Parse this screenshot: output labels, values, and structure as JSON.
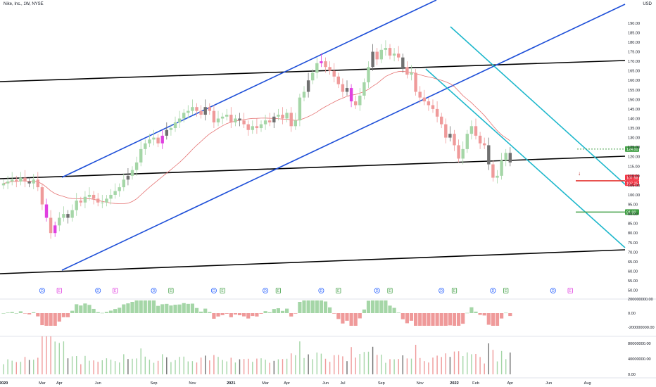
{
  "header": {
    "title": "Nike, Inc., 1W, NYSE",
    "currency": "USD"
  },
  "chart_data": {
    "type": "candlestick",
    "symbol": "NKE",
    "interval": "1W",
    "exchange": "NYSE",
    "ylim": [
      48,
      194
    ],
    "price_ticks": [
      50,
      55,
      60,
      65,
      70,
      75,
      80,
      85,
      90,
      95,
      100,
      105,
      110,
      115,
      120,
      125,
      130,
      135,
      140,
      145,
      150,
      155,
      160,
      165,
      170,
      175,
      180,
      185,
      190
    ],
    "price_tick_labels": [
      "50.00",
      "55.00",
      "60.00",
      "65.00",
      "70.00",
      "75.00",
      "80.00",
      "85.00",
      "90.00",
      "95.00",
      "100.00",
      "105.00",
      "110.00",
      "115.00",
      "120.00",
      "125.00",
      "130.00",
      "135.00",
      "140.00",
      "145.00",
      "150.00",
      "155.00",
      "160.00",
      "165.00",
      "170.00",
      "175.00",
      "180.00",
      "185.00",
      "190.00"
    ],
    "time_labels": [
      {
        "label": "2020",
        "bold": true,
        "bar": 0
      },
      {
        "label": "Mar",
        "bold": false,
        "bar": 9
      },
      {
        "label": "Apr",
        "bold": false,
        "bar": 13
      },
      {
        "label": "Jun",
        "bold": false,
        "bar": 22
      },
      {
        "label": "Sep",
        "bold": false,
        "bar": 35
      },
      {
        "label": "Nov",
        "bold": false,
        "bar": 44
      },
      {
        "label": "2021",
        "bold": true,
        "bar": 53
      },
      {
        "label": "Mar",
        "bold": false,
        "bar": 61
      },
      {
        "label": "Apr",
        "bold": false,
        "bar": 66
      },
      {
        "label": "Jun",
        "bold": false,
        "bar": 75
      },
      {
        "label": "Jul",
        "bold": false,
        "bar": 79
      },
      {
        "label": "Sep",
        "bold": false,
        "bar": 88
      },
      {
        "label": "Nov",
        "bold": false,
        "bar": 97
      },
      {
        "label": "2022",
        "bold": true,
        "bar": 105
      },
      {
        "label": "Feb",
        "bold": false,
        "bar": 110
      },
      {
        "label": "Apr",
        "bold": false,
        "bar": 118
      },
      {
        "label": "Jun",
        "bold": false,
        "bar": 127
      },
      {
        "label": "Aug",
        "bold": false,
        "bar": 136
      }
    ],
    "closes": [
      106,
      107,
      108,
      107,
      109,
      107,
      106,
      108,
      104,
      95,
      88,
      80,
      84,
      88,
      90,
      88,
      92,
      97,
      96,
      99,
      100,
      98,
      96,
      96,
      98,
      100,
      102,
      104,
      108,
      110,
      113,
      117,
      124,
      127,
      129,
      130,
      127,
      131,
      134,
      135,
      138,
      140,
      143,
      144,
      146,
      144,
      142,
      146,
      144,
      138,
      140,
      141,
      142,
      138,
      140,
      139,
      137,
      134,
      136,
      135,
      137,
      139,
      138,
      141,
      142,
      140,
      143,
      136,
      139,
      151,
      154,
      160,
      164,
      169,
      170,
      167,
      165,
      162,
      158,
      154,
      156,
      149,
      147,
      152,
      159,
      167,
      175,
      171,
      176,
      177,
      173,
      174,
      172,
      167,
      163,
      164,
      154,
      151,
      149,
      147,
      145,
      141,
      137,
      130,
      132,
      126,
      119,
      124,
      132,
      136,
      131,
      127,
      126,
      116,
      109,
      110,
      118,
      122,
      117
    ],
    "colors_per_bar": "green=up, red=down, gray=unchanged, magenta=volatility highlight",
    "earnings_markers": [
      {
        "bar": 9,
        "type": "D"
      },
      {
        "bar": 13,
        "type": "E"
      },
      {
        "bar": 22,
        "type": "D"
      },
      {
        "bar": 26,
        "type": "E"
      },
      {
        "bar": 35,
        "type": "D"
      },
      {
        "bar": 39,
        "type": "E"
      },
      {
        "bar": 49,
        "type": "D"
      },
      {
        "bar": 51,
        "type": "E"
      },
      {
        "bar": 61,
        "type": "D"
      },
      {
        "bar": 64,
        "type": "E"
      },
      {
        "bar": 74,
        "type": "D"
      },
      {
        "bar": 78,
        "type": "E"
      },
      {
        "bar": 87,
        "type": "D"
      },
      {
        "bar": 90,
        "type": "E"
      },
      {
        "bar": 102,
        "type": "D"
      },
      {
        "bar": 105,
        "type": "E"
      },
      {
        "bar": 114,
        "type": "D"
      },
      {
        "bar": 117,
        "type": "E"
      },
      {
        "bar": 128,
        "type": "D"
      },
      {
        "bar": 132,
        "type": "E"
      }
    ],
    "price_labels": [
      {
        "label": "124.00",
        "value": 124,
        "color": "#43a047"
      },
      {
        "label": "107.58",
        "value": 107.58,
        "color": "#f23645"
      },
      {
        "label": "107.25",
        "value": 107.25,
        "color": "#f23645"
      },
      {
        "label": "91.00",
        "value": 91,
        "color": "#43a047"
      }
    ],
    "osc_ticks": [
      {
        "label": "200000000.00",
        "value": 200000000
      },
      {
        "label": "0.00",
        "value": 0
      },
      {
        "label": "-200000000.00",
        "value": -200000000
      }
    ],
    "vol_ticks": [
      {
        "label": "80000000.00",
        "value": 80000000
      },
      {
        "label": "40000000.00",
        "value": 40000000
      },
      {
        "label": "0.00",
        "value": 0
      }
    ]
  }
}
